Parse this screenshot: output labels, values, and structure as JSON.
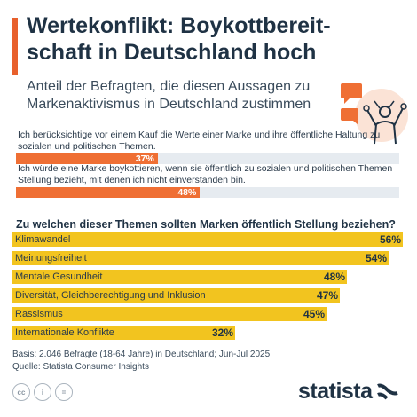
{
  "header": {
    "title": "Wertekonflikt: Boykottbereit-schaft in Deutschland hoch",
    "subtitle": "Anteil der Befragten, die diesen Aussagen zu Markenaktivismus in Deutschland zustimmen"
  },
  "statements": [
    {
      "text": "Ich berücksichtige vor einem Kauf die Werte einer Marke und ihre öffentliche Haltung zu sozialen und politischen Themen.",
      "value": 37,
      "label": "37%"
    },
    {
      "text": "Ich würde eine Marke boykottieren, wenn sie öffentlich zu sozialen und politischen Themen Stellung bezieht, mit denen ich nicht einverstanden bin.",
      "value": 48,
      "label": "48%"
    }
  ],
  "question": "Zu welchen dieser Themen sollten Marken öffentlich Stellung beziehen?",
  "chart_data": [
    {
      "type": "bar",
      "categories": [
        "Ich berücksichtige vor einem Kauf die Werte einer Marke und ihre öffentliche Haltung zu sozialen und politischen Themen.",
        "Ich würde eine Marke boykottieren, wenn sie öffentlich zu sozialen und politischen Themen Stellung bezieht, mit denen ich nicht einverstanden bin."
      ],
      "values": [
        37,
        48
      ],
      "value_labels": [
        "37%",
        "48%"
      ],
      "title": "Anteil der Befragten, die diesen Aussagen zu Markenaktivismus in Deutschland zustimmen",
      "orientation": "horizontal",
      "ylim": [
        0,
        100
      ],
      "color": "#ef6f34"
    },
    {
      "type": "bar",
      "title": "Zu welchen dieser Themen sollten Marken öffentlich Stellung beziehen?",
      "categories": [
        "Klimawandel",
        "Meinungsfreiheit",
        "Mentale Gesundheit",
        "Diversität, Gleichberechtigung und Inklusion",
        "Rassismus",
        "Internationale Konflikte"
      ],
      "values": [
        56,
        54,
        48,
        47,
        45,
        32
      ],
      "value_labels": [
        "56%",
        "54%",
        "48%",
        "47%",
        "45%",
        "32%"
      ],
      "orientation": "horizontal",
      "ylim": [
        0,
        56
      ],
      "color": "#f2c41f"
    }
  ],
  "footer": {
    "basis": "Basis: 2.046 Befragte (18-64 Jahre) in Deutschland; Jun-Jul 2025",
    "quelle": "Quelle: Statista Consumer Insights",
    "license_icons": [
      "cc",
      "i",
      "="
    ],
    "logo": "statista"
  },
  "colors": {
    "accent": "#e8602c",
    "statement_bar": "#ef6f34",
    "topic_bar": "#f2c41f",
    "text": "#1f3244"
  }
}
